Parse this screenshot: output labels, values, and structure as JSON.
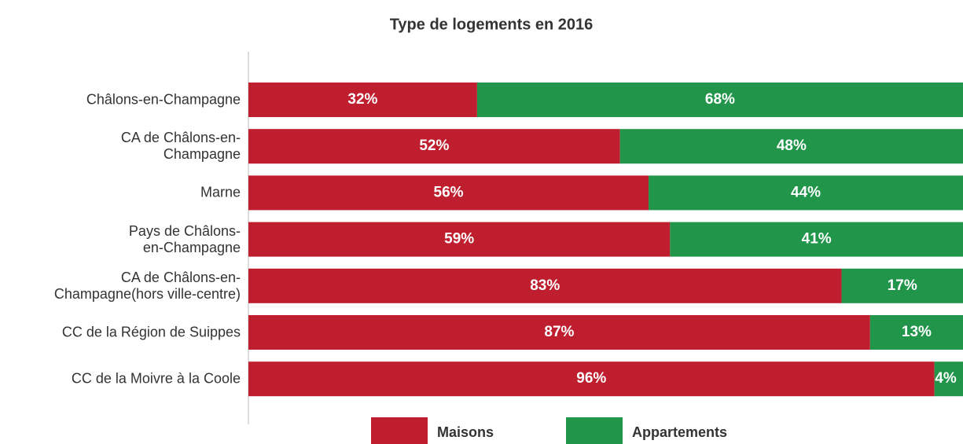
{
  "chart_data": {
    "type": "stacked_barh",
    "title": "Type de logements en 2016",
    "categories": [
      "Châlons-en-Champagne",
      "CA de Châlons-en-\nChampagne",
      "Marne",
      "Pays de Châlons-\nen-Champagne",
      "CA de Châlons-en-\nChampagne(hors ville-centre)",
      "CC de la Région de Suippes",
      "CC de la Moivre à la Coole"
    ],
    "series": [
      {
        "name": "Maisons",
        "color": "#be1e2d",
        "values": [
          32,
          52,
          56,
          59,
          83,
          87,
          96
        ],
        "value_labels": [
          "32%",
          "52%",
          "56%",
          "59%",
          "83%",
          "87%",
          "96%"
        ]
      },
      {
        "name": "Appartements",
        "color": "#21964b",
        "values": [
          68,
          48,
          44,
          41,
          17,
          13,
          4
        ],
        "value_labels": [
          "68%",
          "48%",
          "44%",
          "41%",
          "17%",
          "13%",
          "4%"
        ]
      }
    ],
    "xlim": [
      0,
      100
    ],
    "legend": "bottom"
  }
}
